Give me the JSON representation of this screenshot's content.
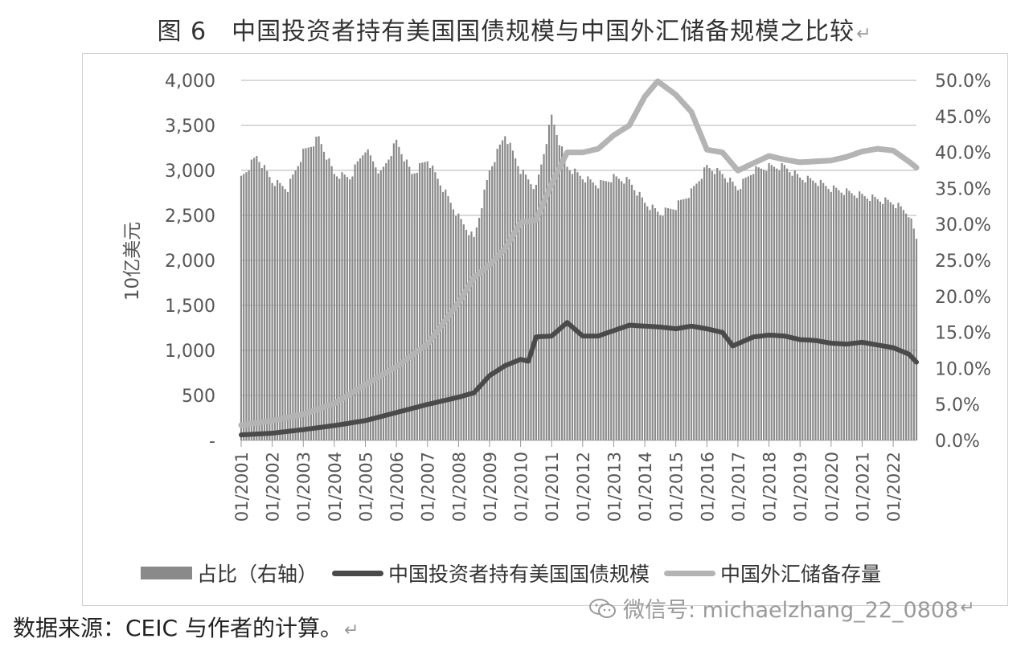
{
  "figure_title": "图 6　中国投资者持有美国国债规模与中国外汇储备规模之比较",
  "return_mark": "↵",
  "source_note": "数据来源：CEIC 与作者的计算。",
  "watermark": {
    "text": "微信号: michaelzhang_22_0808",
    "icon": "wechat-icon"
  },
  "colors": {
    "bars": "#8a8a8a",
    "holdings": "#4a4a4a",
    "reserves": "#b4b4b4",
    "grid": "#d9d9d9"
  },
  "chart_data": {
    "type": "bar",
    "ylabel": "10亿美元",
    "ylim": [
      0,
      4000
    ],
    "ylim_right": [
      0,
      50
    ],
    "y_ticks": [
      "-",
      "500",
      "1,000",
      "1,500",
      "2,000",
      "2,500",
      "3,000",
      "3,500",
      "4,000"
    ],
    "y_tick_values": [
      0,
      500,
      1000,
      1500,
      2000,
      2500,
      3000,
      3500,
      4000
    ],
    "y2_ticks": [
      "0.0%",
      "5.0%",
      "10.0%",
      "15.0%",
      "20.0%",
      "25.0%",
      "30.0%",
      "35.0%",
      "40.0%",
      "45.0%",
      "50.0%"
    ],
    "y2_tick_values": [
      0,
      5,
      10,
      15,
      20,
      25,
      30,
      35,
      40,
      45,
      50
    ],
    "x_ticks": [
      "01/2001",
      "01/2002",
      "01/2003",
      "01/2004",
      "01/2005",
      "01/2006",
      "01/2007",
      "01/2008",
      "01/2009",
      "01/2010",
      "01/2011",
      "01/2012",
      "01/2013",
      "01/2014",
      "01/2015",
      "01/2016",
      "01/2017",
      "01/2018",
      "01/2019",
      "01/2020",
      "01/2021",
      "01/2022"
    ],
    "x_start": "2001-01",
    "x_end": "2022-10",
    "grid": true,
    "legend_position": "bottom",
    "series": [
      {
        "name": "占比（右轴）",
        "kind": "bar",
        "axis": "right",
        "points": [
          [
            "2001-01",
            36.5
          ],
          [
            "2001-07",
            39.5
          ],
          [
            "2002-01",
            36.0
          ],
          [
            "2002-07",
            35.0
          ],
          [
            "2003-01",
            40.0
          ],
          [
            "2003-07",
            42.0
          ],
          [
            "2004-01",
            37.0
          ],
          [
            "2004-07",
            36.5
          ],
          [
            "2005-01",
            40.5
          ],
          [
            "2005-07",
            37.0
          ],
          [
            "2006-01",
            41.5
          ],
          [
            "2006-07",
            37.0
          ],
          [
            "2007-01",
            39.0
          ],
          [
            "2007-07",
            35.0
          ],
          [
            "2008-01",
            31.0
          ],
          [
            "2008-07",
            28.0
          ],
          [
            "2009-01",
            37.5
          ],
          [
            "2009-07",
            42.5
          ],
          [
            "2010-01",
            37.5
          ],
          [
            "2010-07",
            35.0
          ],
          [
            "2011-01",
            45.0
          ],
          [
            "2011-07",
            38.0
          ],
          [
            "2012-01",
            36.5
          ],
          [
            "2012-07",
            35.5
          ],
          [
            "2013-01",
            36.5
          ],
          [
            "2013-07",
            36.0
          ],
          [
            "2014-01",
            33.0
          ],
          [
            "2014-07",
            31.5
          ],
          [
            "2015-01",
            32.5
          ],
          [
            "2015-07",
            34.5
          ],
          [
            "2016-01",
            38.0
          ],
          [
            "2016-07",
            37.0
          ],
          [
            "2017-01",
            35.0
          ],
          [
            "2017-07",
            37.5
          ],
          [
            "2018-01",
            38.0
          ],
          [
            "2018-07",
            38.0
          ],
          [
            "2019-01",
            36.5
          ],
          [
            "2019-07",
            36.0
          ],
          [
            "2020-01",
            35.0
          ],
          [
            "2020-07",
            34.5
          ],
          [
            "2021-01",
            34.0
          ],
          [
            "2021-07",
            33.5
          ],
          [
            "2022-01",
            33.0
          ],
          [
            "2022-07",
            31.5
          ],
          [
            "2022-10",
            28.0
          ]
        ]
      },
      {
        "name": "中国投资者持有美国国债规模",
        "kind": "line",
        "axis": "left",
        "points": [
          [
            "2001-01",
            62
          ],
          [
            "2002-01",
            80
          ],
          [
            "2003-01",
            120
          ],
          [
            "2004-01",
            165
          ],
          [
            "2005-01",
            220
          ],
          [
            "2006-01",
            310
          ],
          [
            "2007-01",
            400
          ],
          [
            "2008-01",
            480
          ],
          [
            "2008-07",
            530
          ],
          [
            "2009-01",
            720
          ],
          [
            "2009-07",
            830
          ],
          [
            "2010-01",
            900
          ],
          [
            "2010-04",
            880
          ],
          [
            "2010-07",
            1150
          ],
          [
            "2011-01",
            1160
          ],
          [
            "2011-07",
            1310
          ],
          [
            "2012-01",
            1160
          ],
          [
            "2012-07",
            1160
          ],
          [
            "2013-01",
            1220
          ],
          [
            "2013-07",
            1280
          ],
          [
            "2014-01",
            1270
          ],
          [
            "2014-07",
            1260
          ],
          [
            "2015-01",
            1240
          ],
          [
            "2015-07",
            1270
          ],
          [
            "2016-01",
            1240
          ],
          [
            "2016-07",
            1200
          ],
          [
            "2016-11",
            1050
          ],
          [
            "2017-07",
            1150
          ],
          [
            "2018-01",
            1170
          ],
          [
            "2018-07",
            1160
          ],
          [
            "2019-01",
            1120
          ],
          [
            "2019-07",
            1110
          ],
          [
            "2020-01",
            1080
          ],
          [
            "2020-07",
            1070
          ],
          [
            "2021-01",
            1090
          ],
          [
            "2021-07",
            1060
          ],
          [
            "2022-01",
            1030
          ],
          [
            "2022-07",
            960
          ],
          [
            "2022-10",
            870
          ]
        ]
      },
      {
        "name": "中国外汇储备存量",
        "kind": "line",
        "axis": "left",
        "points": [
          [
            "2001-01",
            170
          ],
          [
            "2002-01",
            220
          ],
          [
            "2003-01",
            290
          ],
          [
            "2004-01",
            410
          ],
          [
            "2005-01",
            620
          ],
          [
            "2006-01",
            820
          ],
          [
            "2007-01",
            1070
          ],
          [
            "2008-01",
            1530
          ],
          [
            "2008-07",
            1810
          ],
          [
            "2009-01",
            1950
          ],
          [
            "2009-07",
            2130
          ],
          [
            "2010-01",
            2420
          ],
          [
            "2010-07",
            2450
          ],
          [
            "2011-01",
            2850
          ],
          [
            "2011-07",
            3200
          ],
          [
            "2012-01",
            3200
          ],
          [
            "2012-07",
            3240
          ],
          [
            "2013-01",
            3390
          ],
          [
            "2013-07",
            3500
          ],
          [
            "2014-01",
            3820
          ],
          [
            "2014-06",
            3990
          ],
          [
            "2015-01",
            3840
          ],
          [
            "2015-07",
            3650
          ],
          [
            "2016-01",
            3230
          ],
          [
            "2016-07",
            3200
          ],
          [
            "2017-01",
            2998
          ],
          [
            "2017-07",
            3080
          ],
          [
            "2018-01",
            3160
          ],
          [
            "2018-07",
            3120
          ],
          [
            "2019-01",
            3090
          ],
          [
            "2019-07",
            3100
          ],
          [
            "2020-01",
            3110
          ],
          [
            "2020-07",
            3150
          ],
          [
            "2021-01",
            3210
          ],
          [
            "2021-07",
            3240
          ],
          [
            "2022-01",
            3220
          ],
          [
            "2022-07",
            3100
          ],
          [
            "2022-10",
            3030
          ]
        ]
      }
    ]
  }
}
